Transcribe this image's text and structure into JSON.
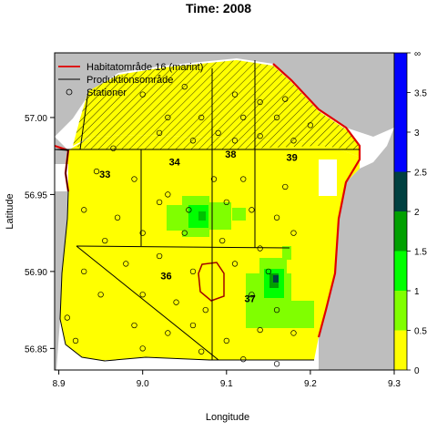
{
  "title": "Time: 2008",
  "xlabel": "Longitude",
  "ylabel": "Latitude",
  "x_ticks": [
    "8.9",
    "9.0",
    "9.1",
    "9.2",
    "9.3"
  ],
  "y_ticks": [
    "56.85",
    "56.90",
    "56.95",
    "57.00"
  ],
  "legend": [
    {
      "label": "Habitatområde 16 (marint)",
      "symbol": "line",
      "color": "#e00000"
    },
    {
      "label": "Produktionsområde",
      "symbol": "line",
      "color": "#000000"
    },
    {
      "label": "Stationer",
      "symbol": "circle",
      "color": "#000000"
    }
  ],
  "colorbar": {
    "ticks": [
      "0",
      "0.5",
      "1",
      "1.5",
      "2",
      "2.5",
      "3",
      "3.5",
      "∞"
    ],
    "bands": [
      {
        "from": 0,
        "to": 0.5,
        "color": "#ffff00"
      },
      {
        "from": 0.5,
        "to": 1,
        "color": "#80ff00"
      },
      {
        "from": 1,
        "to": 1.5,
        "color": "#00ff00"
      },
      {
        "from": 1.5,
        "to": 2,
        "color": "#00a000"
      },
      {
        "from": 2,
        "to": 2.5,
        "color": "#004040"
      },
      {
        "from": 2.5,
        "to": 4,
        "color": "#0000ff"
      }
    ]
  },
  "zone_labels": [
    {
      "text": "33",
      "lon": 8.955,
      "lat": 56.961
    },
    {
      "text": "34",
      "lon": 9.038,
      "lat": 56.969
    },
    {
      "text": "38",
      "lon": 9.105,
      "lat": 56.974
    },
    {
      "text": "39",
      "lon": 9.178,
      "lat": 56.972
    },
    {
      "text": "36",
      "lon": 9.028,
      "lat": 56.895
    },
    {
      "text": "37",
      "lon": 9.128,
      "lat": 56.88
    }
  ],
  "colors": {
    "land": "#bebebe",
    "water_default": "#ffffff",
    "low": "#ffff00",
    "habitat": "#e00000",
    "production": "#000000"
  },
  "chart_data": {
    "type": "heatmap",
    "title": "Time: 2008",
    "xlabel": "Longitude",
    "ylabel": "Latitude",
    "xlim": [
      8.895,
      9.3
    ],
    "ylim": [
      56.836,
      57.042
    ],
    "grid": false,
    "legend_position": "top-left",
    "colorbar_range": [
      0,
      4
    ],
    "colorbar_position": "right",
    "green_patches": [
      {
        "lon": [
          9.04,
          9.1
        ],
        "lat": [
          56.925,
          56.955
        ],
        "level": "1-1.5"
      },
      {
        "lon": [
          9.12,
          9.17
        ],
        "lat": [
          56.88,
          56.915
        ],
        "level": "1-2"
      },
      {
        "lon": [
          9.14,
          9.17
        ],
        "lat": [
          56.885,
          56.895
        ],
        "level": "2-2.5"
      }
    ],
    "stations": [
      [
        9.0,
        57.015
      ],
      [
        9.05,
        57.02
      ],
      [
        9.11,
        57.015
      ],
      [
        9.14,
        57.01
      ],
      [
        9.17,
        57.012
      ],
      [
        9.03,
        57.0
      ],
      [
        9.07,
        57.0
      ],
      [
        9.12,
        57.0
      ],
      [
        9.16,
        57.0
      ],
      [
        9.2,
        56.995
      ],
      [
        9.02,
        56.99
      ],
      [
        9.09,
        56.99
      ],
      [
        9.14,
        56.988
      ],
      [
        8.965,
        56.98
      ],
      [
        9.06,
        56.985
      ],
      [
        9.18,
        56.985
      ],
      [
        9.11,
        56.985
      ],
      [
        8.945,
        56.965
      ],
      [
        8.99,
        56.96
      ],
      [
        9.03,
        56.95
      ],
      [
        9.085,
        56.96
      ],
      [
        9.12,
        56.96
      ],
      [
        9.17,
        56.955
      ],
      [
        8.93,
        56.94
      ],
      [
        8.97,
        56.935
      ],
      [
        9.02,
        56.945
      ],
      [
        9.055,
        56.94
      ],
      [
        9.1,
        56.945
      ],
      [
        9.13,
        56.94
      ],
      [
        9.16,
        56.935
      ],
      [
        8.955,
        56.92
      ],
      [
        9.0,
        56.925
      ],
      [
        9.05,
        56.925
      ],
      [
        9.095,
        56.92
      ],
      [
        9.14,
        56.915
      ],
      [
        9.18,
        56.925
      ],
      [
        8.93,
        56.9
      ],
      [
        8.98,
        56.905
      ],
      [
        9.02,
        56.91
      ],
      [
        9.06,
        56.9
      ],
      [
        9.11,
        56.905
      ],
      [
        9.15,
        56.9
      ],
      [
        8.95,
        56.885
      ],
      [
        9.0,
        56.885
      ],
      [
        9.04,
        56.88
      ],
      [
        9.075,
        56.875
      ],
      [
        9.13,
        56.885
      ],
      [
        9.16,
        56.875
      ],
      [
        8.91,
        56.87
      ],
      [
        8.99,
        56.865
      ],
      [
        9.03,
        56.86
      ],
      [
        9.06,
        56.865
      ],
      [
        9.1,
        56.855
      ],
      [
        9.14,
        56.862
      ],
      [
        9.18,
        56.86
      ],
      [
        8.92,
        56.855
      ],
      [
        9.0,
        56.85
      ],
      [
        9.07,
        56.848
      ],
      [
        9.12,
        56.843
      ],
      [
        9.16,
        56.84
      ]
    ]
  }
}
